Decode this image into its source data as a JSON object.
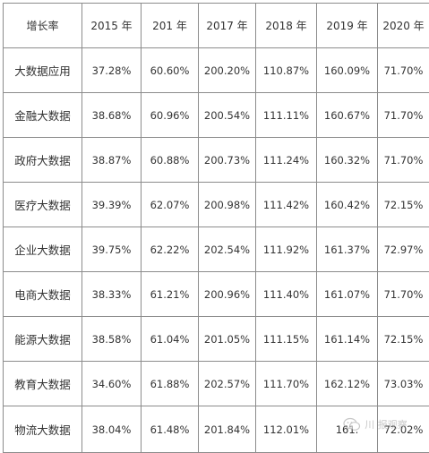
{
  "table": {
    "header": [
      "增长率",
      "2015 年",
      "201 年",
      "2017 年",
      "2018 年",
      "2019 年",
      "2020 年"
    ],
    "rows": [
      [
        "大数据应用",
        "37.28%",
        "60.60%",
        "200.20%",
        "110.87%",
        "160.09%",
        "71.70%"
      ],
      [
        "金融大数据",
        "38.68%",
        "60.96%",
        "200.54%",
        "111.11%",
        "160.67%",
        "71.70%"
      ],
      [
        "政府大数据",
        "38.87%",
        "60.88%",
        "200.73%",
        "111.24%",
        "160.32%",
        "71.70%"
      ],
      [
        "医疗大数据",
        "39.39%",
        "62.07%",
        "200.98%",
        "111.42%",
        "160.42%",
        "72.15%"
      ],
      [
        "企业大数据",
        "39.75%",
        "62.22%",
        "202.54%",
        "111.92%",
        "161.37%",
        "72.97%"
      ],
      [
        "电商大数据",
        "38.33%",
        "61.21%",
        "200.96%",
        "111.40%",
        "161.07%",
        "71.70%"
      ],
      [
        "能源大数据",
        "38.58%",
        "61.04%",
        "201.05%",
        "111.15%",
        "161.14%",
        "72.15%"
      ],
      [
        "教育大数据",
        "34.60%",
        "61.88%",
        "202.57%",
        "111.70%",
        "162.12%",
        "73.03%"
      ],
      [
        "物流大数据",
        "38.04%",
        "61.48%",
        "201.84%",
        "112.01%",
        "161.",
        "72.02%"
      ]
    ]
  },
  "watermark": {
    "text": "川 报观察",
    "icon": "wechat-bubble-icon"
  }
}
